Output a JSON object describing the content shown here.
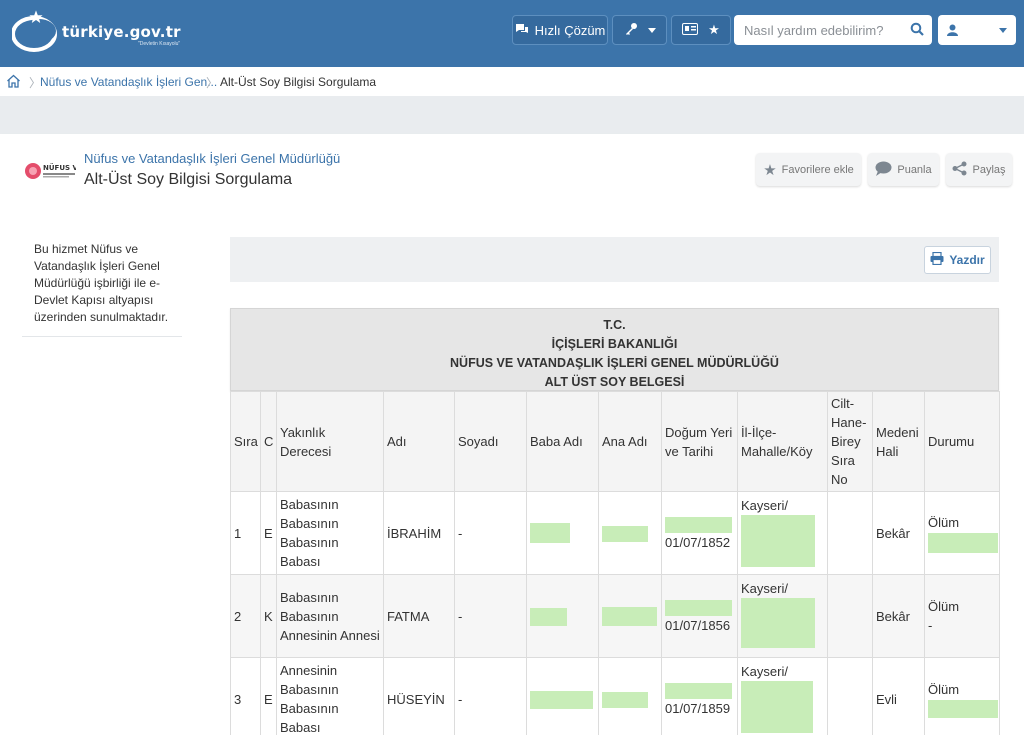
{
  "header": {
    "logo_text": "türkiye.gov.tr",
    "logo_tagline": "\"Devletin Kısayolu\"",
    "quick_solution_label": "Hızlı Çözüm",
    "search_placeholder": "Nasıl yardım edebilirim?",
    "colors": {
      "primary": "#3c74aa"
    }
  },
  "breadcrumb": {
    "parent": "Nüfus ve Vatandaşlık İşleri Gen...",
    "current": "Alt-Üst Soy Bilgisi Sorgulama"
  },
  "service": {
    "parent_org": "Nüfus ve Vatandaşlık İşleri Genel Müdürlüğü",
    "title": "Alt-Üst Soy Bilgisi Sorgulama",
    "actions": {
      "favorite": "Favorilere ekle",
      "rate": "Puanla",
      "share": "Paylaş"
    }
  },
  "sidebar": {
    "info": "Bu hizmet Nüfus ve Vatandaşlık İşleri Genel Müdürlüğü işbirliği ile e-Devlet Kapısı altyapısı üzerinden sunulmaktadır."
  },
  "toolbar": {
    "print_label": "Yazdır"
  },
  "document": {
    "heading_lines": [
      "T.C.",
      "İÇİŞLERİ BAKANLIĞI",
      "NÜFUS VE VATANDAŞLIK İŞLERİ GENEL MÜDÜRLÜĞÜ",
      "ALT ÜST SOY BELGESİ"
    ],
    "columns": [
      "Sıra",
      "C",
      "Yakınlık Derecesi",
      "Adı",
      "Soyadı",
      "Baba Adı",
      "Ana Adı",
      "Doğum Yeri ve Tarihi",
      "İl-İlçe-Mahalle/Köy",
      "Cilt-Hane-Birey Sıra No",
      "Medeni Hali",
      "Durumu"
    ],
    "rows": [
      {
        "sira": "1",
        "c": "E",
        "yakinlik": "Babasının Babasının Babasının Babası",
        "adi": "İBRAHİM",
        "soyadi": "-",
        "dogum_tarihi": "01/07/1852",
        "il": "Kayseri/",
        "medeni": "Bekâr",
        "durumu": "Ölüm"
      },
      {
        "sira": "2",
        "c": "K",
        "yakinlik": "Babasının Babasının Annesinin Annesi",
        "adi": "FATMA",
        "soyadi": "-",
        "dogum_tarihi": "01/07/1856",
        "il": "Kayseri/",
        "medeni": "Bekâr",
        "durumu": "Ölüm",
        "durumu_extra": "-"
      },
      {
        "sira": "3",
        "c": "E",
        "yakinlik": "Annesinin Babasının Babasının Babası",
        "adi": "HÜSEYİN",
        "soyadi": "-",
        "dogum_tarihi": "01/07/1859",
        "il": "Kayseri/",
        "medeni": "Evli",
        "durumu": "Ölüm"
      }
    ]
  }
}
